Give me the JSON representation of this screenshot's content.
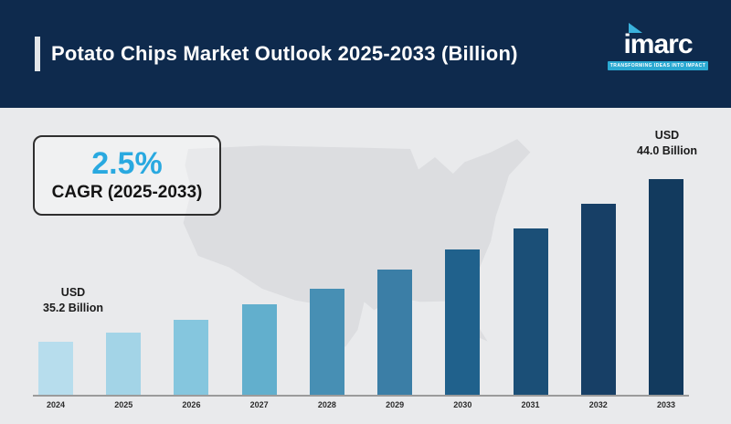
{
  "header": {
    "title": "Potato Chips Market Outlook 2025-2033 (Billion)",
    "logo_text": "imarc",
    "logo_tagline": "TRANSFORMING IDEAS INTO IMPACT"
  },
  "cagr": {
    "value": "2.5%",
    "label": "CAGR (2025-2033)"
  },
  "annotations": {
    "first_line1": "USD",
    "first_line2": "35.2 Billion",
    "last_line1": "USD",
    "last_line2": "44.0 Billion"
  },
  "chart_data": {
    "type": "bar",
    "title": "Potato Chips Market Outlook 2025-2033 (Billion)",
    "unit": "USD Billion",
    "cagr_percent": 2.5,
    "categories": [
      "2024",
      "2025",
      "2026",
      "2027",
      "2028",
      "2029",
      "2030",
      "2031",
      "2032",
      "2033"
    ],
    "values": [
      35.2,
      36.1,
      37.0,
      37.9,
      38.8,
      39.8,
      40.8,
      41.8,
      42.9,
      44.0
    ],
    "labeled_values": {
      "2024": "USD 35.2 Billion",
      "2033": "USD 44.0 Billion"
    },
    "bar_colors": [
      "#b7dded",
      "#a3d4e7",
      "#85c6de",
      "#62afcd",
      "#478fb4",
      "#3b7ea6",
      "#20618c",
      "#1b4f77",
      "#173f66",
      "#123a5e"
    ],
    "xlabel": "",
    "ylabel": "",
    "ylim": [
      33,
      45
    ],
    "gridlines": false,
    "legend_position": "none"
  },
  "colors": {
    "header_bg": "#0e2a4d",
    "body_bg": "#e9eaec",
    "accent_cyan": "#29a9e0",
    "logo_bar_cyan": "#2aa9d2",
    "map_fill": "#dcdde0",
    "axis_gray": "#9b9b9b"
  }
}
